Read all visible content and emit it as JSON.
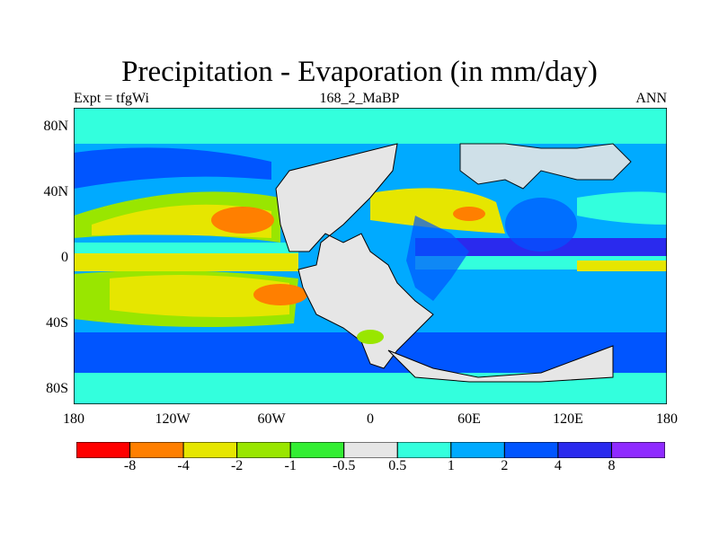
{
  "title": "Precipitation - Evaporation (in mm/day)",
  "left_label": "Expt = tfgWi",
  "center_label": "168_2_MaBP",
  "right_label": "ANN",
  "y_ticks": [
    "80N",
    "40N",
    "0",
    "40S",
    "80S"
  ],
  "x_ticks": [
    "180",
    "120W",
    "60W",
    "0",
    "60E",
    "120E",
    "180"
  ],
  "colorbar": {
    "colors": [
      "#ff0000",
      "#ff7f00",
      "#e6e600",
      "#99e600",
      "#33ee33",
      "#e6e6e6",
      "#33ffdd",
      "#00aaff",
      "#0055ff",
      "#2a2aee",
      "#8f2bff"
    ],
    "labels": [
      "-8",
      "-4",
      "-2",
      "-1",
      "-0.5",
      "0.5",
      "1",
      "2",
      "4",
      "8"
    ]
  },
  "map_colors": {
    "ocean_base": "#00aaff",
    "band_light": "#33ffdd",
    "band_mid": "#0055ff",
    "band_dark": "#2a2aee",
    "dry_yellow": "#e6e600",
    "dry_green": "#99e600",
    "dry_orange": "#ff7f00",
    "land": "#e6e6e6",
    "coast": "#000000"
  }
}
